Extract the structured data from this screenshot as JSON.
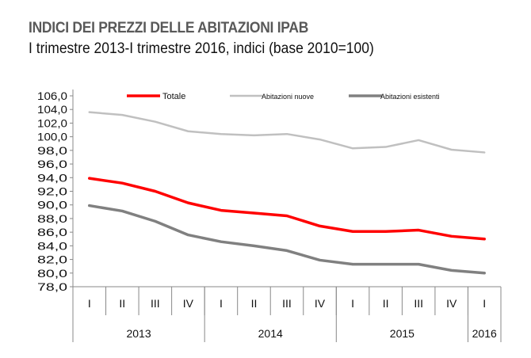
{
  "chart_data": {
    "type": "line",
    "title": "INDICI DEI PREZZI DELLE ABITAZIONI IPAB",
    "subtitle": "I trimestre 2013-I trimestre 2016, indici (base 2010=100)",
    "xlabel": "",
    "ylabel": "",
    "ylim": [
      78,
      106
    ],
    "yticks": [
      "106,0",
      "104,0",
      "102,0",
      "100,0",
      "98,0",
      "96,0",
      "94,0",
      "92,0",
      "90,0",
      "88,0",
      "86,0",
      "84,0",
      "82,0",
      "80,0",
      "78,0"
    ],
    "categories": [
      "I",
      "II",
      "III",
      "IV",
      "I",
      "II",
      "III",
      "IV",
      "I",
      "II",
      "III",
      "IV",
      "I"
    ],
    "years": [
      {
        "label": "2013",
        "quarters": 4
      },
      {
        "label": "2014",
        "quarters": 4
      },
      {
        "label": "2015",
        "quarters": 4
      },
      {
        "label": "2016",
        "quarters": 1
      }
    ],
    "grid": false,
    "legend_position": "top",
    "series": [
      {
        "name": "Totale",
        "color": "#ff0000",
        "values": [
          93.9,
          93.2,
          92.0,
          90.3,
          89.2,
          88.8,
          88.4,
          86.9,
          86.1,
          86.1,
          86.3,
          85.4,
          85.0
        ]
      },
      {
        "name": "Abitazioni nuove",
        "color": "#c0c0c0",
        "values": [
          103.6,
          103.2,
          102.2,
          100.8,
          100.4,
          100.2,
          100.4,
          99.6,
          98.3,
          98.5,
          99.5,
          98.1,
          97.7
        ]
      },
      {
        "name": "Abitazioni esistenti",
        "color": "#808080",
        "values": [
          89.9,
          89.1,
          87.6,
          85.6,
          84.6,
          84.0,
          83.3,
          81.9,
          81.3,
          81.3,
          81.3,
          80.4,
          80.0
        ]
      }
    ]
  }
}
